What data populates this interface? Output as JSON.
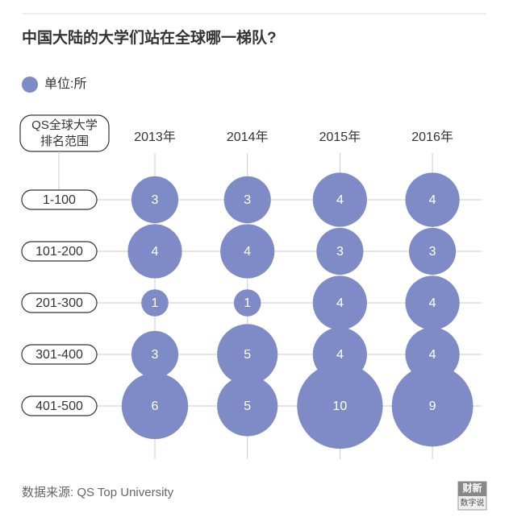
{
  "chart_data": {
    "type": "bubble",
    "title": "中国大陆的大学们站在全球哪一梯队?",
    "legend_label": "单位:所",
    "y_axis_label": [
      "QS全球大学",
      "排名范围"
    ],
    "categories": [
      "1-100",
      "101-200",
      "201-300",
      "301-400",
      "401-500"
    ],
    "color": "#7f8bc6",
    "series": [
      {
        "name": "2013年",
        "values": [
          3,
          4,
          1,
          3,
          6
        ]
      },
      {
        "name": "2014年",
        "values": [
          3,
          4,
          1,
          5,
          5
        ]
      },
      {
        "name": "2015年",
        "values": [
          4,
          3,
          4,
          4,
          10
        ]
      },
      {
        "name": "2016年",
        "values": [
          4,
          3,
          4,
          4,
          9
        ]
      }
    ],
    "source": "数据来源: QS Top University",
    "logo": [
      "财新",
      "数字说"
    ]
  }
}
